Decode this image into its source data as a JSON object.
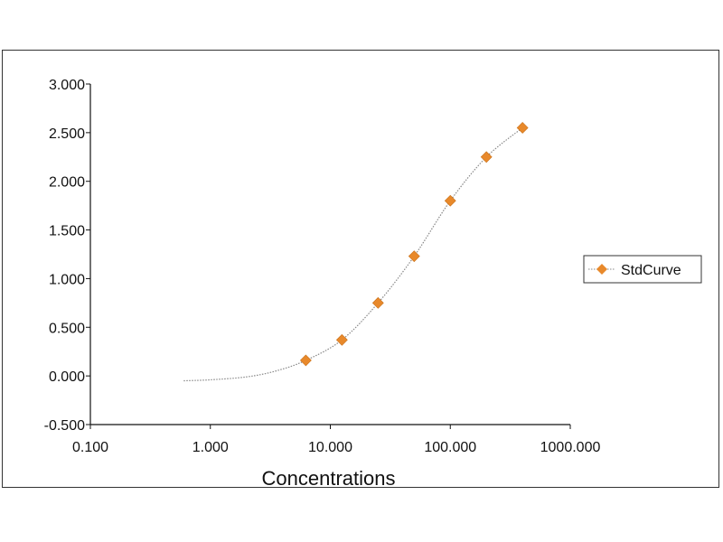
{
  "chart_data": {
    "type": "scatter",
    "title": "",
    "xlabel": "Concentrations",
    "ylabel": "",
    "x_scale": "log",
    "xlim": [
      0.1,
      1000
    ],
    "ylim": [
      -0.5,
      3.0
    ],
    "x_ticks": [
      0.1,
      1,
      10,
      100,
      1000
    ],
    "x_tick_labels": [
      "0.100",
      "1.000",
      "10.000",
      "100.000",
      "1000.000"
    ],
    "y_ticks": [
      -0.5,
      0,
      0.5,
      1.0,
      1.5,
      2.0,
      2.5,
      3.0
    ],
    "y_tick_labels": [
      "-0.500",
      "0.000",
      "0.500",
      "1.000",
      "1.500",
      "2.000",
      "2.500",
      "3.000"
    ],
    "grid": false,
    "legend_position": "right",
    "series": [
      {
        "name": "StdCurve",
        "marker": "diamond",
        "color": "#e8892b",
        "x": [
          6.25,
          12.5,
          25,
          50,
          100,
          200,
          400
        ],
        "y": [
          0.16,
          0.37,
          0.75,
          1.23,
          1.8,
          2.25,
          2.55
        ]
      }
    ],
    "fit_curve": {
      "style": "dotted",
      "color": "#888888",
      "x": [
        0.6,
        1.0,
        2.0,
        3.5,
        6.25,
        12.5,
        25,
        50,
        100,
        200,
        400
      ],
      "y": [
        -0.05,
        -0.04,
        -0.01,
        0.05,
        0.16,
        0.37,
        0.75,
        1.23,
        1.8,
        2.25,
        2.55
      ]
    }
  }
}
